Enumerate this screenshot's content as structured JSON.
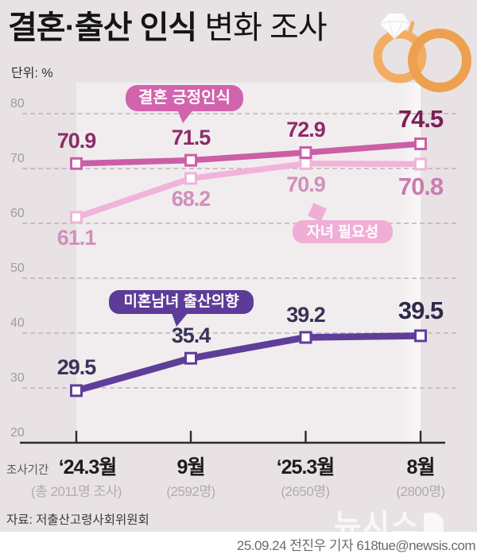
{
  "header": {
    "title_bold": "결혼·출산 인식",
    "title_regular": " 변화 조사",
    "unit_label": "단위: %"
  },
  "chart_data": {
    "type": "line",
    "x_axis_label": "조사기간",
    "categories": [
      "‘24.3월",
      "9월",
      "‘25.3월",
      "8월"
    ],
    "category_sublabels": [
      "(총 2011명 조사)",
      "(2592명)",
      "(2650명)",
      "(2800명)"
    ],
    "y_ticks": [
      20,
      30,
      40,
      50,
      60,
      70,
      80
    ],
    "ylim": [
      20,
      80
    ],
    "grid": "dashed-horizontal",
    "legend_position": "callout-badges-on-plot",
    "series": [
      {
        "name": "결혼 긍정인식",
        "values": [
          70.9,
          71.5,
          72.9,
          74.5
        ],
        "color": "#ca5fa7",
        "value_color": "#8d2b68",
        "final_value_color": "#7c1d57",
        "label_side": "above"
      },
      {
        "name": "자녀 필요성",
        "values": [
          61.1,
          68.2,
          70.9,
          70.8
        ],
        "color": "#f0b4d9",
        "value_color": "#d28fbd",
        "final_value_color": "#ca7cb1",
        "label_side": "below"
      },
      {
        "name": "미혼남녀 출산의향",
        "values": [
          29.5,
          35.4,
          39.2,
          39.5
        ],
        "color": "#5f3e99",
        "value_color": "#393357",
        "final_value_color": "#2f2a4a",
        "label_side": "above"
      }
    ]
  },
  "colors": {
    "background": "#e8e2e4",
    "plot_band": "#f1edee",
    "badge_marriage": "#d263ad",
    "badge_children": "#f0aed7",
    "badge_birth": "#5d3c99",
    "rings_light": "#f3ad63",
    "rings_dark": "#eda14e"
  },
  "footer": {
    "source": "자료: 저출산고령사회위원회",
    "watermark": "뉴시스",
    "credit": "25.09.24 전진우 기자 618tue@newsis.com"
  }
}
